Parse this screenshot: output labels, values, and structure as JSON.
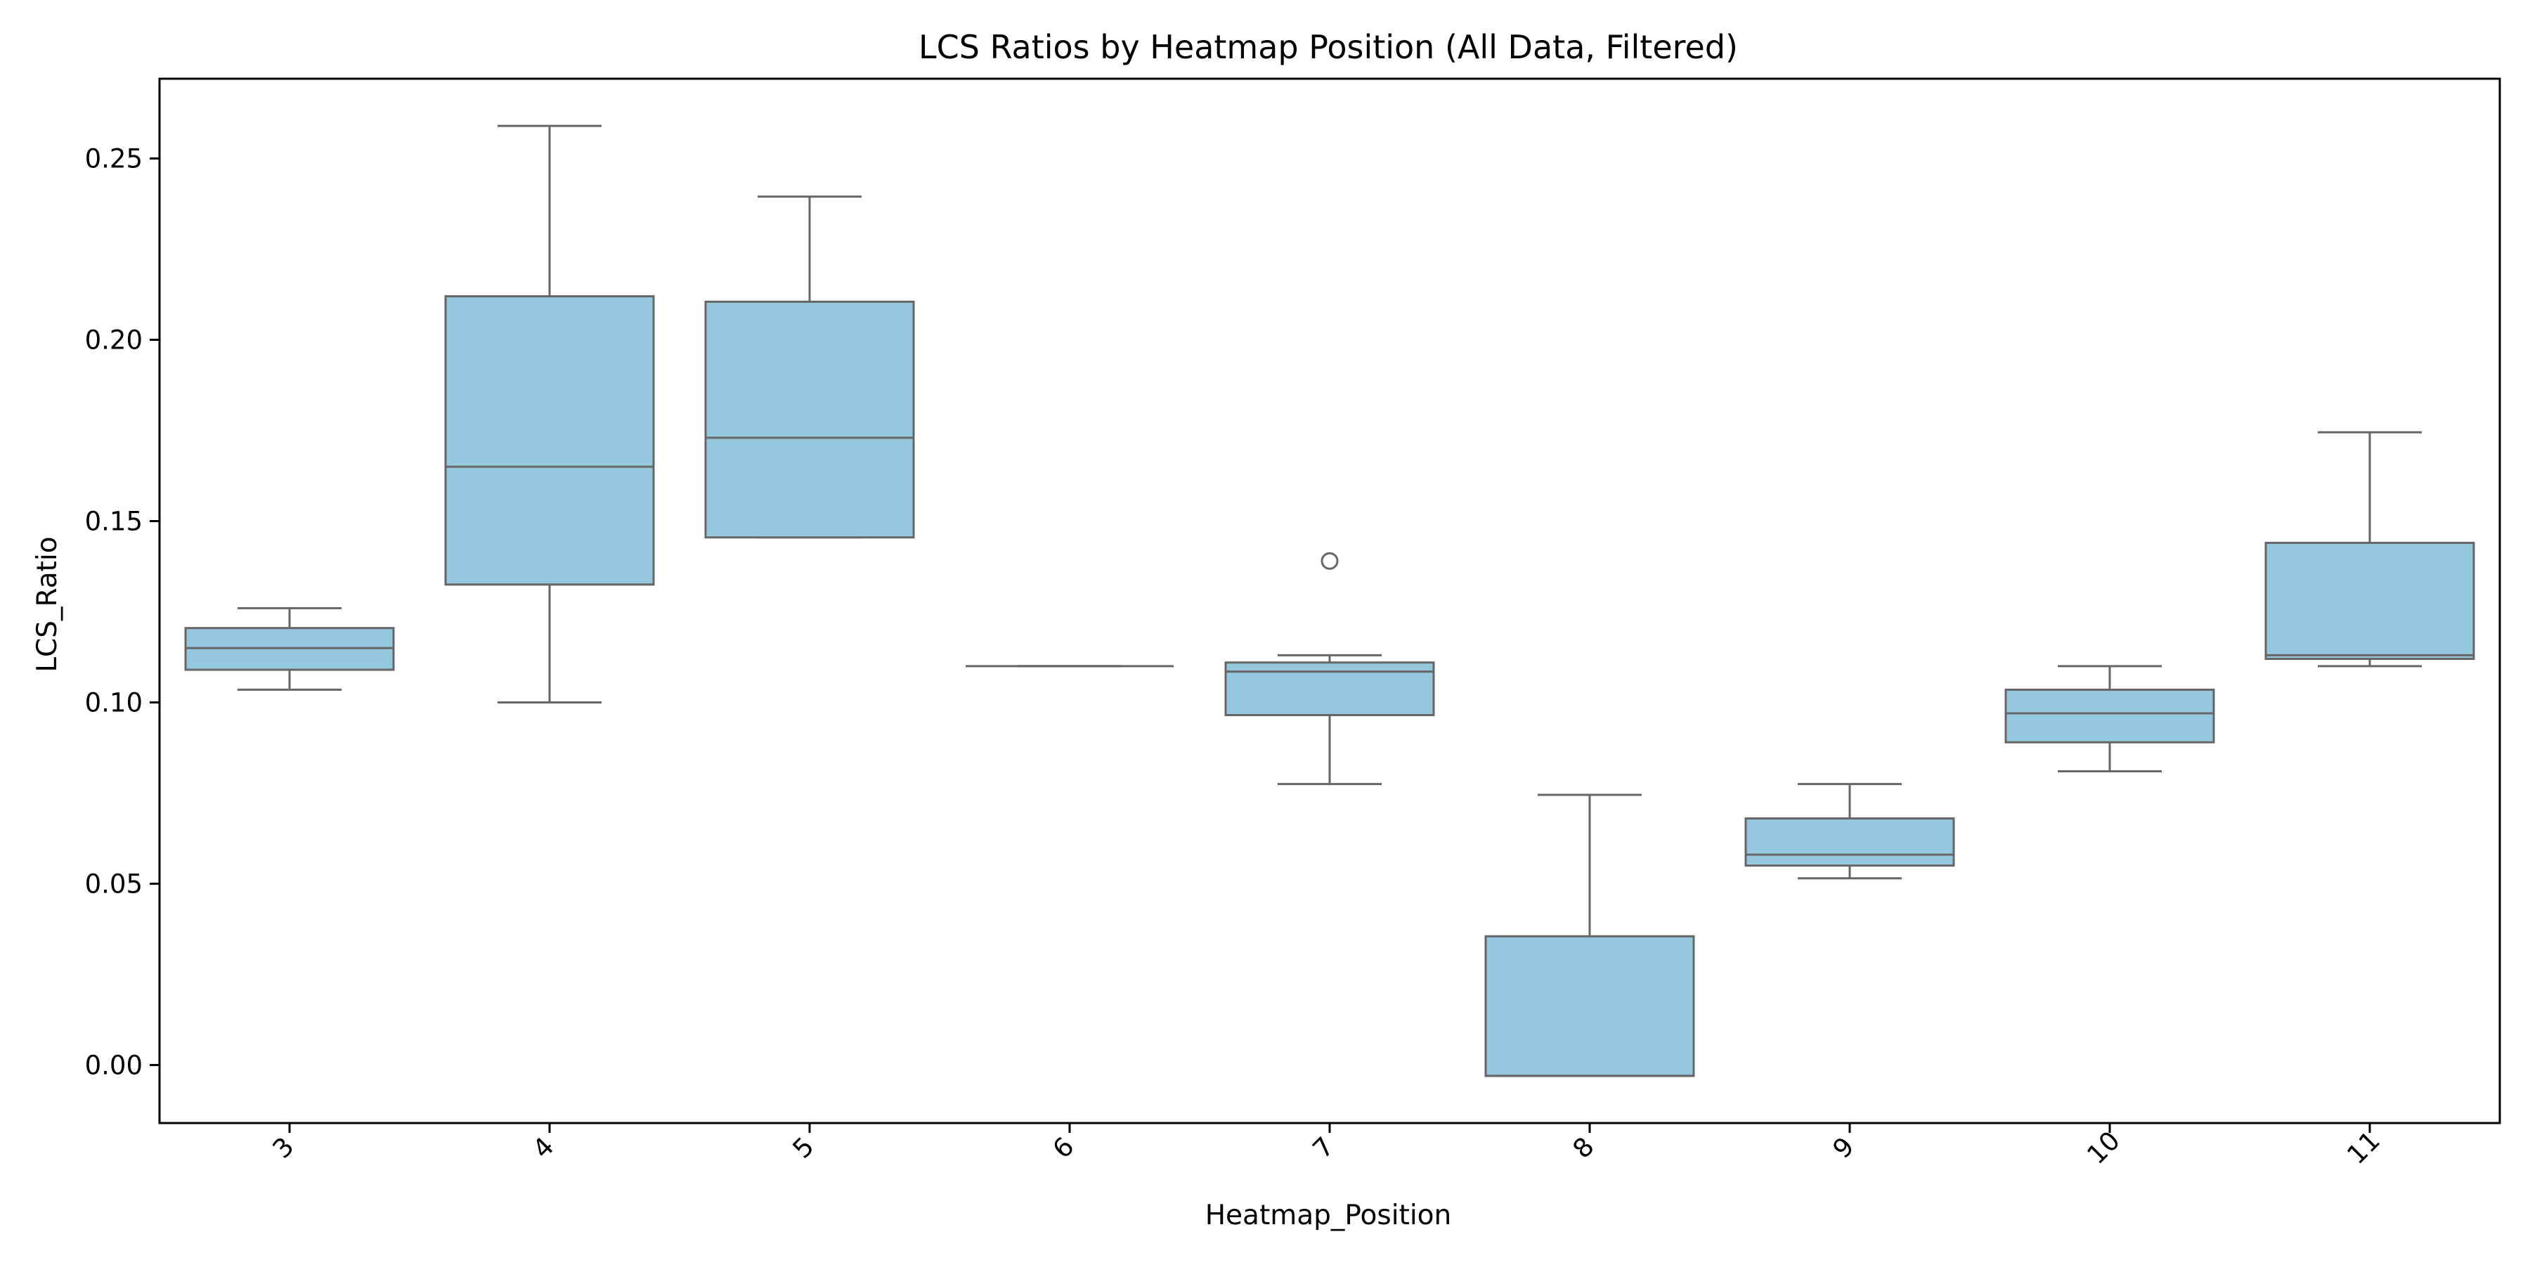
{
  "chart_data": {
    "type": "box",
    "title": "LCS Ratios by Heatmap Position (All Data, Filtered)",
    "xlabel": "Heatmap_Position",
    "ylabel": "LCS_Ratio",
    "ylim": [
      -0.016,
      0.272
    ],
    "yticks": [
      0.0,
      0.05,
      0.1,
      0.15,
      0.2,
      0.25
    ],
    "ytick_labels": [
      "0.00",
      "0.05",
      "0.10",
      "0.15",
      "0.20",
      "0.25"
    ],
    "categories": [
      "3",
      "4",
      "5",
      "6",
      "7",
      "8",
      "9",
      "10",
      "11"
    ],
    "xtick_rotation": 45,
    "grid": false,
    "box_color": "#95c8de",
    "line_color": "#666666",
    "boxes": [
      {
        "category": "3",
        "whisker_low": 0.1035,
        "q1": 0.109,
        "median": 0.115,
        "q3": 0.1205,
        "whisker_high": 0.126,
        "outliers": []
      },
      {
        "category": "4",
        "whisker_low": 0.1,
        "q1": 0.1325,
        "median": 0.165,
        "q3": 0.212,
        "whisker_high": 0.259,
        "outliers": []
      },
      {
        "category": "5",
        "whisker_low": 0.1455,
        "q1": 0.1455,
        "median": 0.173,
        "q3": 0.2105,
        "whisker_high": 0.2395,
        "outliers": []
      },
      {
        "category": "6",
        "whisker_low": 0.11,
        "q1": 0.11,
        "median": 0.11,
        "q3": 0.11,
        "whisker_high": 0.11,
        "outliers": []
      },
      {
        "category": "7",
        "whisker_low": 0.0775,
        "q1": 0.0965,
        "median": 0.1085,
        "q3": 0.111,
        "whisker_high": 0.113,
        "outliers": [
          0.139
        ]
      },
      {
        "category": "8",
        "whisker_low": -0.003,
        "q1": -0.003,
        "median": -0.003,
        "q3": 0.0355,
        "whisker_high": 0.0745,
        "outliers": []
      },
      {
        "category": "9",
        "whisker_low": 0.0515,
        "q1": 0.055,
        "median": 0.058,
        "q3": 0.068,
        "whisker_high": 0.0775,
        "outliers": []
      },
      {
        "category": "10",
        "whisker_low": 0.081,
        "q1": 0.089,
        "median": 0.097,
        "q3": 0.1035,
        "whisker_high": 0.11,
        "outliers": []
      },
      {
        "category": "11",
        "whisker_low": 0.11,
        "q1": 0.112,
        "median": 0.113,
        "q3": 0.144,
        "whisker_high": 0.1745,
        "outliers": []
      }
    ]
  }
}
